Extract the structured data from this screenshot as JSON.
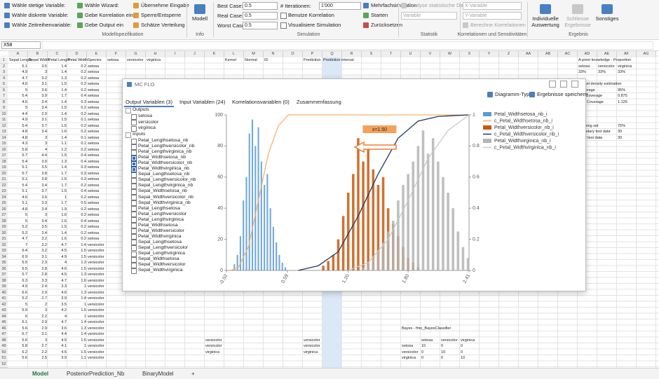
{
  "ribbon": {
    "selectors": [
      "Wähle stetige Variable:",
      "Wähle diskrete Variable:",
      "Wähle Zeitreihenvariable:"
    ],
    "wizards": [
      "Wähle Wizard:",
      "Gebe Korrelation ein",
      "Gebe Output ein"
    ],
    "actions": [
      "Übernehme Eingabe",
      "Sperre/Entsperre",
      "Schätze Verteilung"
    ],
    "modell_button": "Modell",
    "best_case_label": "Best Case:",
    "best_case": "0.5",
    "real_case_label": "Real Case:",
    "real_case": "0.5",
    "worst_case_label": "Worst Case:",
    "worst_case": "0.5",
    "iterations_label": "# Iterationen:",
    "iterations": "1'000",
    "use_correlation": "Benutze Korrelation",
    "visualize": "Visualisiere Simulation",
    "multi_simulation": "Mehrfachsimulation",
    "start": "Starten",
    "reset": "Zurücksetzen",
    "analyse": "Analyse statistische Daten",
    "variable": "Variable",
    "x_variable": "X-Variable",
    "y_variable": "Y-Variable",
    "compute_correlations": "Berechne Korrelationen",
    "individual": "Individuelle Auswertung",
    "close_results": "Schliesse Ergebnisse",
    "misc": "Sonstiges",
    "groups": {
      "spec": "Modellspezifikation",
      "info": "Info",
      "simulation": "Simulation",
      "statistics": "Statistik",
      "correlations": "Korrelationen und Sensitivitäten",
      "result": "Ergebnis"
    }
  },
  "formula_bar": {
    "name_box": "X58"
  },
  "sheet": {
    "columns": [
      "A",
      "B",
      "C",
      "D",
      "E",
      "F",
      "G",
      "H",
      "I",
      "J",
      "K",
      "L",
      "M",
      "N",
      "O",
      "P",
      "Q",
      "R",
      "S",
      "T",
      "U",
      "V",
      "W",
      "X",
      "Y",
      "Z",
      "AA",
      "AB",
      "AC",
      "AD",
      "AE",
      "AF",
      "AG"
    ],
    "row_numbers": [
      1,
      2,
      3,
      4,
      5,
      6,
      7,
      8,
      9,
      10,
      11,
      12,
      13,
      14,
      15,
      16,
      17,
      18,
      19,
      20,
      21,
      22,
      23,
      24,
      25,
      26,
      27,
      28,
      29,
      30,
      31,
      32,
      33,
      34,
      35,
      36,
      37,
      38,
      39,
      40,
      41,
      42,
      43,
      44,
      45,
      46,
      47,
      48,
      49,
      50,
      51,
      52
    ],
    "data_rows": [
      [
        5.1,
        3.5,
        1.4,
        0.2,
        "setosa"
      ],
      [
        4.9,
        3,
        1.4,
        0.2,
        "setosa"
      ],
      [
        4.7,
        3.2,
        1.3,
        0.2,
        "setosa"
      ],
      [
        4.6,
        3.1,
        1.5,
        0.2,
        "setosa"
      ],
      [
        5,
        3.6,
        1.4,
        0.2,
        "setosa"
      ],
      [
        5.4,
        3.9,
        1.7,
        0.4,
        "setosa"
      ],
      [
        4.6,
        3.4,
        1.4,
        0.3,
        "setosa"
      ],
      [
        5,
        3.4,
        1.5,
        0.2,
        "setosa"
      ],
      [
        4.4,
        2.9,
        1.4,
        0.2,
        "setosa"
      ],
      [
        4.9,
        3.1,
        1.5,
        0.1,
        "setosa"
      ],
      [
        5.4,
        3.7,
        1.5,
        0.2,
        "setosa"
      ],
      [
        4.8,
        3.4,
        1.6,
        0.2,
        "setosa"
      ],
      [
        4.8,
        3,
        1.4,
        0.1,
        "setosa"
      ],
      [
        4.3,
        3,
        1.1,
        0.1,
        "setosa"
      ],
      [
        5.8,
        4,
        1.2,
        0.2,
        "setosa"
      ],
      [
        5.7,
        4.4,
        1.5,
        0.4,
        "setosa"
      ],
      [
        5.4,
        3.9,
        1.3,
        0.4,
        "setosa"
      ],
      [
        5.1,
        3.5,
        1.4,
        0.3,
        "setosa"
      ],
      [
        5.7,
        3.8,
        1.7,
        0.3,
        "setosa"
      ],
      [
        5.1,
        3.8,
        1.5,
        0.3,
        "setosa"
      ],
      [
        5.4,
        3.4,
        1.7,
        0.2,
        "setosa"
      ],
      [
        5.1,
        3.7,
        1.5,
        0.4,
        "setosa"
      ],
      [
        4.6,
        3.6,
        1,
        0.2,
        "setosa"
      ],
      [
        5.1,
        3.3,
        1.7,
        0.5,
        "setosa"
      ],
      [
        4.8,
        3.4,
        1.9,
        0.2,
        "setosa"
      ],
      [
        5,
        3,
        1.6,
        0.2,
        "setosa"
      ],
      [
        5,
        3.4,
        1.6,
        0.4,
        "setosa"
      ],
      [
        5.2,
        3.5,
        1.5,
        0.2,
        "setosa"
      ],
      [
        5.2,
        3.4,
        1.4,
        0.2,
        "setosa"
      ],
      [
        4.7,
        3.2,
        1.6,
        0.2,
        "setosa"
      ],
      [
        7,
        3.2,
        4.7,
        1.4,
        "versicolor"
      ],
      [
        6.4,
        3.2,
        4.5,
        1.5,
        "versicolor"
      ],
      [
        6.9,
        3.1,
        4.9,
        1.5,
        "versicolor"
      ],
      [
        5.5,
        2.3,
        4,
        1.3,
        "versicolor"
      ],
      [
        6.5,
        2.8,
        4.6,
        1.5,
        "versicolor"
      ],
      [
        5.7,
        2.8,
        4.5,
        1.3,
        "versicolor"
      ],
      [
        6.3,
        3.3,
        4.7,
        1.6,
        "versicolor"
      ],
      [
        4.9,
        2.4,
        3.3,
        1,
        "versicolor"
      ],
      [
        6.6,
        2.9,
        4.6,
        1.3,
        "versicolor"
      ],
      [
        5.2,
        2.7,
        3.9,
        1.4,
        "versicolor"
      ],
      [
        5,
        2,
        3.5,
        1,
        "versicolor"
      ],
      [
        5.9,
        3,
        4.2,
        1.5,
        "versicolor"
      ],
      [
        6,
        2.2,
        4,
        1,
        "versicolor"
      ],
      [
        6.1,
        2.9,
        4.7,
        1.4,
        "versicolor"
      ],
      [
        5.6,
        2.9,
        3.6,
        1.3,
        "versicolor"
      ],
      [
        6.7,
        3.1,
        4.4,
        1.4,
        "versicolor"
      ],
      [
        5.6,
        3,
        4.5,
        1.5,
        "versicolor"
      ],
      [
        5.8,
        2.7,
        4.1,
        1,
        "versicolor"
      ],
      [
        6.2,
        2.2,
        4.5,
        1.5,
        "versicolor"
      ],
      [
        5.6,
        2.5,
        3.9,
        1.1,
        "versicolor"
      ]
    ],
    "cells": {
      "A1": "Sepal Length",
      "B1": "Sepal Width",
      "C1": "Petal Length",
      "D1": "Petal Width",
      "E1": "Species",
      "F1": "setosa",
      "G1": "versicolor",
      "H1": "virginica",
      "L1": "Kernel",
      "M1": "Normal",
      "N1": "ID",
      "P1": "Prediction",
      "Q1": "Prediction interval",
      "AD1": "A priori knowledge - Proportion",
      "AD2": "setosa",
      "AE2": "versicolor",
      "AF2": "virginica",
      "AD3": "33%",
      "AE3": "33%",
      "AF3": "33%",
      "AD5": "Kernel density estimation",
      "AD6": "Coverage",
      "AF6": "95%",
      "AD7": "Min Coverage",
      "AF7": "0.875",
      "AD8": "Max Coverage",
      "AF8": "1.125",
      "AD12": "Training set",
      "AF12": "75%",
      "AD13": "boundary test data",
      "AF13": "30",
      "AD14": "Total test data",
      "AF14": "30",
      "K48": "versicolor",
      "P48": "versicolor",
      "K49": "versicolor",
      "P49": "versicolor",
      "K50": "virginica",
      "P50": "virginica",
      "U46": "Bayes - fmo_BayesClassifier",
      "V48": "setosa",
      "W48": "versicolor",
      "X48": "virginica",
      "U49": "setosa",
      "V49": "10",
      "W49": "0",
      "X49": "0",
      "U50": "versicolor",
      "V50": "0",
      "W50": "10",
      "X50": "0",
      "U51": "virginica",
      "V51": "0",
      "W51": "0",
      "X51": "10"
    },
    "tabs": [
      "Model",
      "PosteriorPrediction_Nb",
      "BinaryModel",
      "+"
    ]
  },
  "dialog": {
    "title": "MC FLO",
    "chart_type": "Diagramm-Typ",
    "save_results": "Ergebnisse speichern",
    "tabs": [
      "Output Variablen (3)",
      "Input Variablen (24)",
      "Korrelationsvariablen (0)",
      "Zusammenfassung"
    ],
    "outputs_label": "Outputs",
    "outputs": [
      "setosa",
      "versicolor",
      "virginica"
    ],
    "inputs_label": "Inputs",
    "inputs": [
      {
        "label": "Petal_Lengthsetosa_nb",
        "checked": false
      },
      {
        "label": "Petal_Lengthversicolor_nb",
        "checked": false
      },
      {
        "label": "Petal_Lengthvirginica_nb",
        "checked": false
      },
      {
        "label": "Petal_Widthsetosa_nb",
        "checked": true
      },
      {
        "label": "Petal_Widthversicolor_nb",
        "checked": true
      },
      {
        "label": "Petal_Widthvirginica_nb",
        "checked": true
      },
      {
        "label": "Sepal_Lengthsetosa_nb",
        "checked": false
      },
      {
        "label": "Sepal_Lengthversicolor_nb",
        "checked": false
      },
      {
        "label": "Sepal_Lengthvirginica_nb",
        "checked": false
      },
      {
        "label": "Sepal_Widthsetosa_nb",
        "checked": false
      },
      {
        "label": "Sepal_Widthversicolor_nb",
        "checked": false
      },
      {
        "label": "Sepal_Widthvirginica_nb",
        "checked": false
      },
      {
        "label": "Petal_Lengthsetosa",
        "checked": false
      },
      {
        "label": "Petal_Lengthversicolor",
        "checked": false
      },
      {
        "label": "Petal_Lengthvirginica",
        "checked": false
      },
      {
        "label": "Petal_Widthsetosa",
        "checked": false
      },
      {
        "label": "Petal_Widthversicolor",
        "checked": false
      },
      {
        "label": "Petal_Widthvirginica",
        "checked": false
      },
      {
        "label": "Sepal_Lengthsetosa",
        "checked": false
      },
      {
        "label": "Sepal_Lengthversicolor",
        "checked": false
      },
      {
        "label": "Sepal_Lengthvirginica",
        "checked": false
      },
      {
        "label": "Sepal_Widthsetosa",
        "checked": false
      },
      {
        "label": "Sepal_Widthversicolor",
        "checked": false
      },
      {
        "label": "Sepal_Widthvirginica",
        "checked": false
      }
    ]
  },
  "chart_data": {
    "type": "histogram",
    "xlim": [
      -0.02,
      2.41
    ],
    "xticks": [
      -0.02,
      0.59,
      {
        "value": 1.2,
        "label": "1.20"
      },
      {
        "value": 1.8,
        "label": "1.80"
      },
      2.41
    ],
    "ylim": [
      0,
      100
    ],
    "yticks": [
      0,
      20,
      40,
      60,
      80,
      100
    ],
    "y2lim": [
      0,
      1
    ],
    "y2ticks": [
      0,
      0.2,
      0.4,
      0.6,
      0.8,
      1
    ],
    "annotations": [
      {
        "text": "x=1.50",
        "x": 1.5
      }
    ],
    "series": [
      {
        "name": "Petal_Widthsetosa_nb_i",
        "type": "bar",
        "color": "#5b9bd5",
        "x": [
          0.06,
          0.09,
          0.12,
          0.15,
          0.18,
          0.21,
          0.24,
          0.27,
          0.3,
          0.33,
          0.36,
          0.39,
          0.42,
          0.45,
          0.48,
          0.51,
          0.54,
          0.57
        ],
        "values": [
          4,
          10,
          22,
          45,
          60,
          88,
          97,
          80,
          92,
          70,
          55,
          62,
          40,
          28,
          18,
          10,
          5,
          2
        ]
      },
      {
        "name": "c_Petal_Widthsetosa_nb_i",
        "type": "line",
        "axis": "y2",
        "color": "#f6b26b",
        "x": [
          0.02,
          0.1,
          0.2,
          0.3,
          0.4,
          0.5,
          0.6,
          2.41
        ],
        "values": [
          0,
          0.02,
          0.15,
          0.45,
          0.75,
          0.93,
          1,
          1
        ]
      },
      {
        "name": "Petal_Widthversicolor_nb_i",
        "type": "bar",
        "color": "#c55a11",
        "x": [
          0.95,
          1,
          1.05,
          1.1,
          1.15,
          1.2,
          1.25,
          1.3,
          1.35,
          1.4,
          1.45,
          1.5,
          1.55,
          1.6,
          1.65,
          1.7,
          1.75,
          1.8,
          1.85,
          1.9
        ],
        "values": [
          3,
          6,
          10,
          20,
          35,
          50,
          62,
          85,
          70,
          78,
          65,
          55,
          60,
          40,
          30,
          22,
          15,
          8,
          5,
          2
        ]
      },
      {
        "name": "c_Petal_Widthversicolor_nb_i",
        "type": "line",
        "axis": "y2",
        "color": "#203864",
        "x": [
          0.7,
          0.9,
          1.1,
          1.3,
          1.5,
          1.7,
          1.9,
          2.1,
          2.41
        ],
        "values": [
          0,
          0.03,
          0.12,
          0.35,
          0.62,
          0.85,
          0.96,
          0.99,
          1
        ]
      },
      {
        "name": "Petal_Widthvirginica_nb_i",
        "type": "bar",
        "color": "#b4b4b4",
        "x": [
          1.35,
          1.4,
          1.45,
          1.5,
          1.55,
          1.6,
          1.65,
          1.7,
          1.75,
          1.8,
          1.85,
          1.9,
          1.95,
          2,
          2.05,
          2.1,
          2.15,
          2.2,
          2.25,
          2.3,
          2.35,
          2.4
        ],
        "values": [
          2,
          5,
          8,
          12,
          18,
          25,
          32,
          45,
          55,
          62,
          70,
          80,
          90,
          75,
          85,
          70,
          60,
          50,
          40,
          25,
          15,
          8
        ]
      },
      {
        "name": "c_Petal_Widthvirginica_nb_i",
        "type": "line",
        "axis": "y2",
        "color": "#c9c9c9",
        "x": [
          1.2,
          1.4,
          1.6,
          1.8,
          2,
          2.2,
          2.41
        ],
        "values": [
          0,
          0.05,
          0.2,
          0.45,
          0.72,
          0.9,
          1
        ]
      }
    ]
  }
}
